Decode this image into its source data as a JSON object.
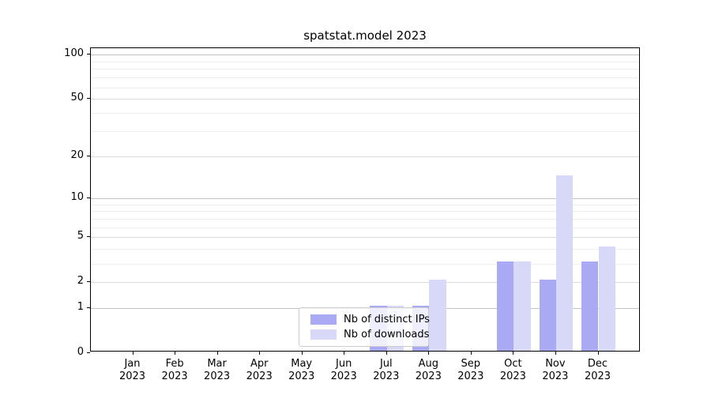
{
  "chart_data": {
    "type": "bar",
    "title": "spatstat.model 2023",
    "x_categories": [
      "Jan",
      "Feb",
      "Mar",
      "Apr",
      "May",
      "Jun",
      "Jul",
      "Aug",
      "Sep",
      "Oct",
      "Nov",
      "Dec"
    ],
    "x_year": "2023",
    "series": [
      {
        "name": "Nb of distinct IPs",
        "color": "#a9a9f4",
        "values": [
          0,
          0,
          0,
          0,
          0,
          0,
          1,
          1,
          0,
          3,
          2,
          3
        ]
      },
      {
        "name": "Nb of downloads",
        "color": "#d8d8f8",
        "values": [
          0,
          0,
          0,
          0,
          0,
          0,
          1,
          2,
          0,
          3,
          14,
          4
        ]
      }
    ],
    "y_axis": {
      "scale": "log1p",
      "tick_labels": [
        0,
        1,
        2,
        5,
        10,
        20,
        50,
        100
      ],
      "major_gridlines": [
        1,
        10,
        100
      ],
      "mid_gridlines": [
        2,
        5,
        20,
        50
      ],
      "minor_gridlines": [
        3,
        4,
        6,
        7,
        8,
        9,
        30,
        40,
        60,
        70,
        80,
        90
      ],
      "ylim": [
        0,
        110
      ]
    },
    "legend_position": "lower-center-inside",
    "grid": true
  },
  "legend": {
    "items": [
      {
        "label": "Nb of distinct IPs"
      },
      {
        "label": "Nb of downloads"
      }
    ]
  }
}
